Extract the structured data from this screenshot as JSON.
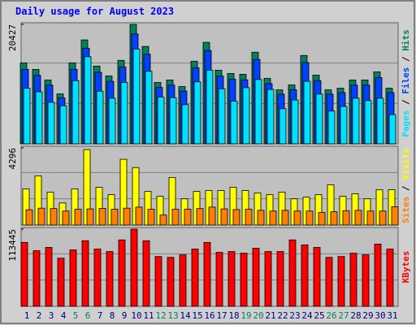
{
  "title": "Daily usage for August 2023",
  "legend_separator": " / ",
  "chart_data": [
    {
      "type": "bar",
      "ylim": [
        0,
        20427
      ],
      "yticks": [
        20427
      ],
      "series": [
        {
          "name": "Pages",
          "color": "#00e0ff",
          "values": [
            9500,
            8900,
            7100,
            6500,
            10800,
            14900,
            9000,
            7800,
            10500,
            16200,
            12400,
            8000,
            7900,
            6700,
            10600,
            12600,
            9400,
            7300,
            9600,
            11000,
            9300,
            6000,
            7500,
            10700,
            8500,
            5600,
            6400,
            7800,
            7400,
            7800,
            5000
          ]
        },
        {
          "name": "Files",
          "color": "#0040ff",
          "values": [
            12740,
            11710,
            10040,
            7850,
            12740,
            16350,
            12230,
            10680,
            13130,
            18790,
            15320,
            9650,
            10040,
            9010,
            13000,
            15960,
            11580,
            11070,
            10940,
            14420,
            10290,
            8490,
            9260,
            13900,
            10810,
            8490,
            8750,
            10040,
            10040,
            11330,
            8750
          ]
        },
        {
          "name": "Hits",
          "color": "#00805c",
          "values": [
            13850,
            12730,
            10910,
            8530,
            13850,
            17770,
            13290,
            11610,
            14270,
            20427,
            16650,
            10490,
            10910,
            9790,
            14130,
            17350,
            12590,
            12030,
            11890,
            15670,
            11190,
            9230,
            10070,
            15110,
            11750,
            9230,
            9510,
            10910,
            10910,
            12310,
            9510
          ]
        }
      ]
    },
    {
      "type": "bar",
      "ylim": [
        0,
        4296
      ],
      "yticks": [
        4296
      ],
      "series": [
        {
          "name": "Sites",
          "color": "#ff8000",
          "values": [
            850,
            940,
            920,
            780,
            880,
            900,
            930,
            880,
            940,
            1000,
            880,
            560,
            880,
            880,
            920,
            1000,
            900,
            860,
            880,
            820,
            780,
            820,
            780,
            780,
            700,
            740,
            800,
            820,
            780,
            780,
            1020
          ]
        },
        {
          "name": "Visits",
          "color": "#ffff00",
          "values": [
            2010,
            2740,
            1830,
            1230,
            2010,
            4200,
            2100,
            1690,
            3660,
            3200,
            1870,
            1600,
            2650,
            1460,
            1870,
            1920,
            1920,
            2100,
            1920,
            1780,
            1690,
            1830,
            1460,
            1550,
            1690,
            2240,
            1600,
            1740,
            1460,
            1970,
            1970
          ]
        }
      ]
    },
    {
      "type": "bar",
      "ylim": [
        0,
        113445
      ],
      "yticks": [
        113445
      ],
      "categories": [
        "1",
        "2",
        "3",
        "4",
        "5",
        "6",
        "7",
        "8",
        "9",
        "10",
        "11",
        "12",
        "13",
        "14",
        "15",
        "16",
        "17",
        "18",
        "19",
        "20",
        "21",
        "22",
        "23",
        "24",
        "25",
        "26",
        "27",
        "28",
        "29",
        "30",
        "31"
      ],
      "category_colors": [
        "#000080",
        "#000080",
        "#000080",
        "#000080",
        "#00805c",
        "#00805c",
        "#000080",
        "#000080",
        "#000080",
        "#000080",
        "#000080",
        "#00805c",
        "#00805c",
        "#000080",
        "#000080",
        "#000080",
        "#000080",
        "#000080",
        "#00805c",
        "#00805c",
        "#000080",
        "#000080",
        "#000080",
        "#000080",
        "#000080",
        "#00805c",
        "#00805c",
        "#000080",
        "#000080",
        "#000080",
        "#000080"
      ],
      "series": [
        {
          "name": "KBytes",
          "color": "#ff0000",
          "values": [
            93930,
            81730,
            86610,
            70750,
            82950,
            96370,
            84170,
            80510,
            97590,
            113445,
            96370,
            73190,
            71970,
            75630,
            84170,
            93930,
            79290,
            80510,
            78070,
            85390,
            80510,
            80510,
            97590,
            90270,
            86610,
            71970,
            73190,
            78070,
            75630,
            91490,
            84170
          ]
        }
      ]
    }
  ]
}
